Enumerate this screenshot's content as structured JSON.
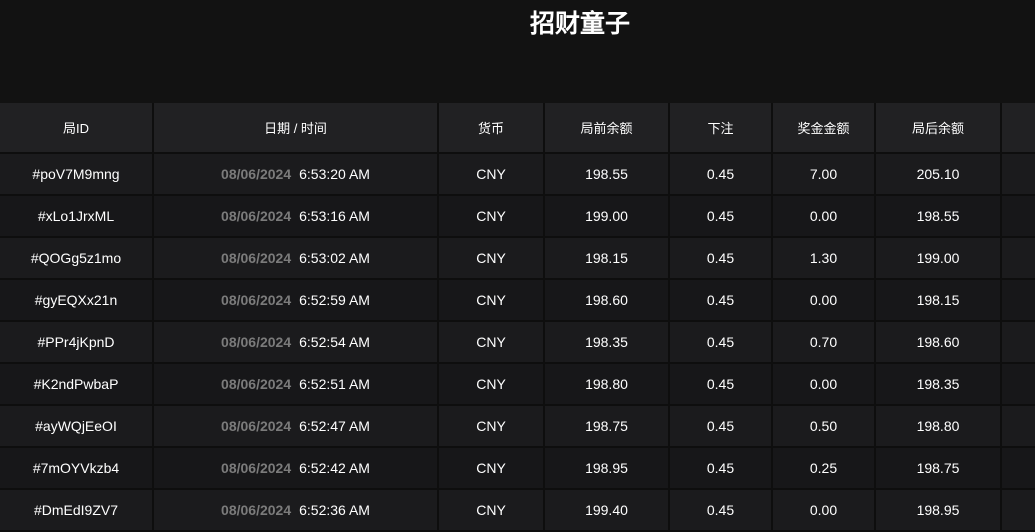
{
  "title": "招财童子",
  "table": {
    "headers": [
      "局ID",
      "日期 / 时间",
      "货币",
      "局前余额",
      "下注",
      "奖金金额",
      "局后余额",
      ""
    ],
    "rows": [
      {
        "id": "#poV7M9mng",
        "date": "08/06/2024",
        "time": "6:53:20 AM",
        "currency": "CNY",
        "before": "198.55",
        "bet": "0.45",
        "win": "7.00",
        "after": "205.10"
      },
      {
        "id": "#xLo1JrxML",
        "date": "08/06/2024",
        "time": "6:53:16 AM",
        "currency": "CNY",
        "before": "199.00",
        "bet": "0.45",
        "win": "0.00",
        "after": "198.55"
      },
      {
        "id": "#QOGg5z1mo",
        "date": "08/06/2024",
        "time": "6:53:02 AM",
        "currency": "CNY",
        "before": "198.15",
        "bet": "0.45",
        "win": "1.30",
        "after": "199.00"
      },
      {
        "id": "#gyEQXx21n",
        "date": "08/06/2024",
        "time": "6:52:59 AM",
        "currency": "CNY",
        "before": "198.60",
        "bet": "0.45",
        "win": "0.00",
        "after": "198.15"
      },
      {
        "id": "#PPr4jKpnD",
        "date": "08/06/2024",
        "time": "6:52:54 AM",
        "currency": "CNY",
        "before": "198.35",
        "bet": "0.45",
        "win": "0.70",
        "after": "198.60"
      },
      {
        "id": "#K2ndPwbaP",
        "date": "08/06/2024",
        "time": "6:52:51 AM",
        "currency": "CNY",
        "before": "198.80",
        "bet": "0.45",
        "win": "0.00",
        "after": "198.35"
      },
      {
        "id": "#ayWQjEeOI",
        "date": "08/06/2024",
        "time": "6:52:47 AM",
        "currency": "CNY",
        "before": "198.75",
        "bet": "0.45",
        "win": "0.50",
        "after": "198.80"
      },
      {
        "id": "#7mOYVkzb4",
        "date": "08/06/2024",
        "time": "6:52:42 AM",
        "currency": "CNY",
        "before": "198.95",
        "bet": "0.45",
        "win": "0.25",
        "after": "198.75"
      },
      {
        "id": "#DmEdI9ZV7",
        "date": "08/06/2024",
        "time": "6:52:36 AM",
        "currency": "CNY",
        "before": "199.40",
        "bet": "0.45",
        "win": "0.00",
        "after": "198.95"
      }
    ]
  }
}
